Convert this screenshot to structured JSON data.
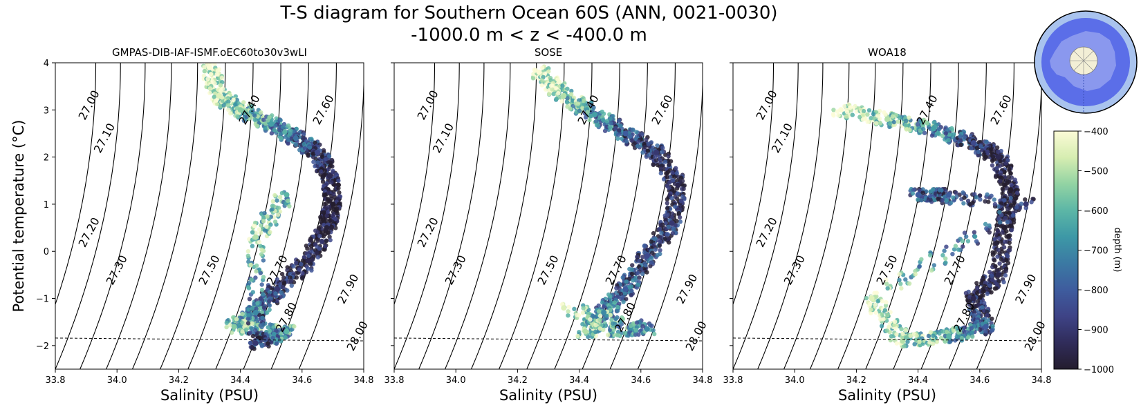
{
  "figure": {
    "title_line1": "T-S diagram for Southern Ocean 60S (ANN, 0021-0030)",
    "title_line2": "-1000.0 m < z < -400.0 m"
  },
  "chart_data": [
    {
      "type": "scatter",
      "title": "GMPAS-DIB-IAF-ISMF.oEC60to30v3wLI",
      "xlabel": "Salinity (PSU)",
      "ylabel": "Potential temperature (°C)",
      "xlim": [
        33.8,
        34.8
      ],
      "ylim": [
        -2.5,
        4
      ],
      "xticks": [
        33.8,
        34.0,
        34.2,
        34.4,
        34.6,
        34.8
      ],
      "yticks": [
        -2,
        -1,
        0,
        1,
        2,
        3,
        4
      ],
      "color_by": "depth (m)",
      "freezing_line": [
        [
          33.8,
          -1.84
        ],
        [
          34.8,
          -1.9
        ]
      ],
      "points": [
        {
          "S": 34.3,
          "T": 3.9,
          "z": -400
        },
        {
          "S": 34.33,
          "T": 3.3,
          "z": -450
        },
        {
          "S": 34.4,
          "T": 3.0,
          "z": -550
        },
        {
          "S": 34.5,
          "T": 2.7,
          "z": -650
        },
        {
          "S": 34.58,
          "T": 2.4,
          "z": -750
        },
        {
          "S": 34.65,
          "T": 2.1,
          "z": -850
        },
        {
          "S": 34.69,
          "T": 1.6,
          "z": -950
        },
        {
          "S": 34.7,
          "T": 1.0,
          "z": -1000
        },
        {
          "S": 34.68,
          "T": 0.5,
          "z": -980
        },
        {
          "S": 34.62,
          "T": -0.2,
          "z": -950
        },
        {
          "S": 34.52,
          "T": -0.8,
          "z": -900
        },
        {
          "S": 34.45,
          "T": -1.3,
          "z": -700
        },
        {
          "S": 34.38,
          "T": -1.6,
          "z": -550
        },
        {
          "S": 34.55,
          "T": -1.7,
          "z": -600
        },
        {
          "S": 34.45,
          "T": -1.95,
          "z": -900
        },
        {
          "S": 34.45,
          "T": 0.3,
          "z": -500
        },
        {
          "S": 34.55,
          "T": 1.2,
          "z": -600
        }
      ]
    },
    {
      "type": "scatter",
      "title": "SOSE",
      "xlabel": "Salinity (PSU)",
      "xlim": [
        33.8,
        34.8
      ],
      "ylim": [
        -2.5,
        4
      ],
      "xticks": [
        33.8,
        34.0,
        34.2,
        34.4,
        34.6,
        34.8
      ],
      "yticks": [
        -2,
        -1,
        0,
        1,
        2,
        3,
        4
      ],
      "color_by": "depth (m)",
      "freezing_line": [
        [
          33.8,
          -1.84
        ],
        [
          34.8,
          -1.9
        ]
      ],
      "points": [
        {
          "S": 34.27,
          "T": 3.8,
          "z": -400
        },
        {
          "S": 34.35,
          "T": 3.3,
          "z": -500
        },
        {
          "S": 34.45,
          "T": 2.9,
          "z": -650
        },
        {
          "S": 34.55,
          "T": 2.5,
          "z": -800
        },
        {
          "S": 34.65,
          "T": 2.1,
          "z": -900
        },
        {
          "S": 34.72,
          "T": 1.4,
          "z": -950
        },
        {
          "S": 34.7,
          "T": 0.6,
          "z": -900
        },
        {
          "S": 34.62,
          "T": -0.1,
          "z": -850
        },
        {
          "S": 34.55,
          "T": -0.8,
          "z": -800
        },
        {
          "S": 34.48,
          "T": -1.3,
          "z": -700
        },
        {
          "S": 34.42,
          "T": -1.7,
          "z": -500
        },
        {
          "S": 34.62,
          "T": -1.65,
          "z": -700
        },
        {
          "S": 34.35,
          "T": -1.2,
          "z": -450
        }
      ]
    },
    {
      "type": "scatter",
      "title": "WOA18",
      "xlabel": "Salinity (PSU)",
      "xlim": [
        33.8,
        34.8
      ],
      "ylim": [
        -2.5,
        4
      ],
      "xticks": [
        33.8,
        34.0,
        34.2,
        34.4,
        34.6,
        34.8
      ],
      "yticks": [
        -2,
        -1,
        0,
        1,
        2,
        3,
        4
      ],
      "color_by": "depth (m)",
      "freezing_line": [
        [
          33.8,
          -1.84
        ],
        [
          34.8,
          -1.9
        ]
      ],
      "points": [
        {
          "S": 34.15,
          "T": 3.0,
          "z": -400
        },
        {
          "S": 34.3,
          "T": 2.8,
          "z": -500
        },
        {
          "S": 34.45,
          "T": 2.6,
          "z": -650
        },
        {
          "S": 34.58,
          "T": 2.3,
          "z": -850
        },
        {
          "S": 34.66,
          "T": 2.0,
          "z": -950
        },
        {
          "S": 34.7,
          "T": 1.3,
          "z": -1000
        },
        {
          "S": 34.68,
          "T": 0.5,
          "z": -1000
        },
        {
          "S": 34.66,
          "T": -0.5,
          "z": -950
        },
        {
          "S": 34.58,
          "T": -1.0,
          "z": -950
        },
        {
          "S": 34.62,
          "T": -1.6,
          "z": -800
        },
        {
          "S": 34.5,
          "T": -1.8,
          "z": -600
        },
        {
          "S": 34.35,
          "T": -1.9,
          "z": -500
        },
        {
          "S": 34.25,
          "T": -1.0,
          "z": -450
        },
        {
          "S": 34.75,
          "T": 1.0,
          "z": -900
        },
        {
          "S": 34.4,
          "T": 1.2,
          "z": -800
        },
        {
          "S": 34.5,
          "T": 1.2,
          "z": -800
        }
      ]
    }
  ],
  "density_contours": [
    {
      "label": "27.00",
      "sigma": 27.0
    },
    {
      "label": "27.10",
      "sigma": 27.1
    },
    {
      "label": "27.20",
      "sigma": 27.2
    },
    {
      "label": "27.30",
      "sigma": 27.3
    },
    {
      "label": "27.40",
      "sigma": 27.4
    },
    {
      "label": "27.50",
      "sigma": 27.5
    },
    {
      "label": "27.60",
      "sigma": 27.6
    },
    {
      "label": "27.70",
      "sigma": 27.7
    },
    {
      "label": "27.80",
      "sigma": 27.8
    },
    {
      "label": "27.90",
      "sigma": 27.9
    },
    {
      "label": "28.00",
      "sigma": 28.0
    }
  ],
  "colorbar": {
    "label": "depth (m)",
    "range": [
      -1000,
      -400
    ],
    "ticks": [
      "-400",
      "-500",
      "-600",
      "-700",
      "-800",
      "-900",
      "-1000"
    ],
    "colors": [
      "#fbfbd6",
      "#d6edb1",
      "#92d3a3",
      "#5cb6a6",
      "#3d98a6",
      "#3b79a3",
      "#3e5c9e",
      "#3e4386",
      "#302c5a",
      "#241d2e"
    ]
  },
  "inset_map": {
    "name": "antarctica-region-map",
    "ocean_color": "#5b6ee8",
    "ring_color": "#a9c3ee",
    "land_color": "#8a98ee"
  }
}
